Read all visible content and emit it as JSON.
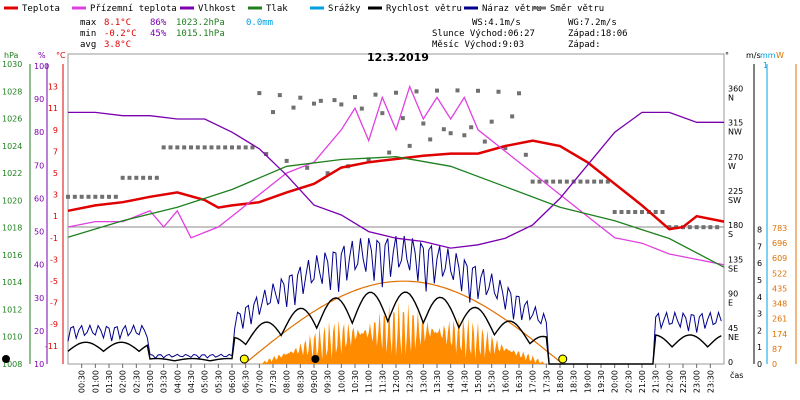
{
  "legend": [
    {
      "label": "Teplota",
      "color": "#e00000"
    },
    {
      "label": "Přízemní teplota",
      "color": "#e040e0"
    },
    {
      "label": "Vlhkost",
      "color": "#7a00b0"
    },
    {
      "label": "Tlak",
      "color": "#208020"
    },
    {
      "label": "Srážky",
      "color": "#00a0e0"
    },
    {
      "label": "Rychlost větru",
      "color": "#000000"
    },
    {
      "label": "Náraz větru",
      "color": "#00008b"
    },
    {
      "label": "Směr větru",
      "color": "#707070"
    }
  ],
  "stats": {
    "rows": [
      {
        "label": "max",
        "temp": "8.1°C",
        "hum": "86%",
        "press": "1023.2hPa",
        "rain": "0.0mm"
      },
      {
        "label": "min",
        "temp": "-0.2°C",
        "hum": "45%",
        "press": "1015.1hPa",
        "rain": ""
      },
      {
        "label": "avg",
        "temp": "3.8°C",
        "hum": "",
        "press": "",
        "rain": ""
      }
    ],
    "ws": "WS:4.1m/s",
    "wg": "WG:7.2m/s",
    "slunce": "Slunce Východ:06:27",
    "slunce_zapad": "Západ:18:06",
    "mesic": "Měsíc  Východ:9:03",
    "mesic_zapad": "Západ:"
  },
  "chart_data": {
    "type": "line",
    "title": "12.3.2019",
    "xlabel": "čas",
    "x_ticks": [
      "00:30",
      "01:00",
      "01:30",
      "02:00",
      "02:30",
      "03:00",
      "03:30",
      "04:00",
      "04:30",
      "05:00",
      "05:30",
      "06:00",
      "06:30",
      "07:00",
      "07:30",
      "08:00",
      "08:30",
      "09:00",
      "09:30",
      "10:00",
      "10:30",
      "11:00",
      "11:30",
      "12:00",
      "12:30",
      "13:00",
      "13:30",
      "14:00",
      "14:30",
      "15:00",
      "15:30",
      "16:00",
      "16:30",
      "17:00",
      "17:30",
      "18:00",
      "18:30",
      "19:00",
      "19:30",
      "20:00",
      "20:30",
      "21:00",
      "21:30",
      "22:00",
      "22:30",
      "23:00",
      "23:30"
    ],
    "axes": {
      "hPa": {
        "unit": "hPa",
        "ticks": [
          1008,
          1010,
          1012,
          1014,
          1016,
          1018,
          1020,
          1022,
          1024,
          1026,
          1028,
          1030
        ],
        "color": "#208020"
      },
      "pct": {
        "unit": "%",
        "ticks": [
          10,
          20,
          30,
          40,
          50,
          60,
          70,
          80,
          90,
          100
        ],
        "color": "#7a00b0"
      },
      "temp": {
        "unit": "°C",
        "ticks": [
          -11,
          -9,
          -7,
          -5,
          -3,
          -1,
          1,
          3,
          5,
          7,
          9,
          11,
          13
        ],
        "color": "#e00000"
      },
      "dir": {
        "unit": "°",
        "ticks": [
          "0",
          "45 NE",
          "90 E",
          "135 SE",
          "180 S",
          "225 SW",
          "270 W",
          "315 NW",
          "360 N"
        ],
        "color": "#000000"
      },
      "ms": {
        "unit": "m/s",
        "ticks": [
          0,
          1,
          2,
          3,
          4,
          5,
          6,
          7,
          8
        ],
        "color": "#000000"
      },
      "mm": {
        "unit": "mm",
        "ticks": [
          0,
          1
        ],
        "color": "#00a0e0"
      },
      "W": {
        "unit": "W",
        "ticks": [
          0,
          87,
          174,
          261,
          348,
          435,
          522,
          609,
          696,
          783
        ],
        "color": "#e07000"
      }
    },
    "sunrise_hour": 6.45,
    "sunset_hour": 18.1,
    "series": [
      {
        "name": "Teplota",
        "axis": "temp",
        "color": "#e00000",
        "x": [
          0,
          1,
          2,
          3,
          4,
          5,
          5.5,
          6,
          7,
          8,
          9,
          10,
          11,
          12,
          13,
          14,
          15,
          16,
          17,
          18,
          19,
          20,
          21,
          22,
          22.5,
          23,
          24
        ],
        "y": [
          1.5,
          2.0,
          2.3,
          2.8,
          3.2,
          2.5,
          1.8,
          2.0,
          2.3,
          3.2,
          4.0,
          5.5,
          6.0,
          6.3,
          6.6,
          6.8,
          6.8,
          7.5,
          8.0,
          7.5,
          6.0,
          4.0,
          2.0,
          -0.2,
          0.0,
          1.0,
          0.5
        ]
      },
      {
        "name": "Přízemní teplota",
        "axis": "temp",
        "color": "#e040e0",
        "x": [
          0,
          1,
          2,
          3,
          3.5,
          4,
          4.5,
          5,
          5.5,
          6,
          6.5,
          7,
          7.5,
          8,
          9,
          10,
          10.5,
          11,
          11.5,
          12,
          12.5,
          13,
          13.5,
          14,
          14.5,
          15,
          16,
          17,
          18,
          19,
          20,
          21,
          22,
          23,
          24
        ],
        "y": [
          0.0,
          0.5,
          0.5,
          1.5,
          0.0,
          1.5,
          -1.0,
          -0.5,
          0.0,
          1.0,
          2.0,
          3.0,
          4.0,
          5.0,
          6.0,
          9.0,
          11.0,
          8.0,
          12.0,
          9.0,
          13.0,
          10.0,
          12.0,
          10.0,
          12.0,
          9.0,
          7.0,
          5.0,
          3.0,
          1.0,
          -1.0,
          -1.5,
          -2.5,
          -3.0,
          -3.5
        ]
      },
      {
        "name": "Vlhkost",
        "axis": "pct",
        "color": "#7a00b0",
        "x": [
          0,
          1,
          2,
          3,
          4,
          5,
          6,
          7,
          8,
          9,
          10,
          11,
          12,
          13,
          14,
          15,
          16,
          17,
          18,
          19,
          20,
          21,
          22,
          23,
          24
        ],
        "y": [
          86,
          86,
          85,
          85,
          84,
          84,
          80,
          75,
          67,
          58,
          55,
          50,
          48,
          47,
          45,
          46,
          48,
          52,
          60,
          70,
          80,
          86,
          86,
          83,
          83
        ]
      },
      {
        "name": "Tlak",
        "axis": "hPa",
        "color": "#208020",
        "x": [
          0,
          2,
          4,
          6,
          8,
          10,
          12,
          14,
          16,
          18,
          20,
          22,
          24
        ],
        "y": [
          1017.3,
          1018.5,
          1019.5,
          1020.8,
          1022.5,
          1023.0,
          1023.2,
          1022.5,
          1021.0,
          1019.5,
          1018.5,
          1017.2,
          1015.1
        ]
      }
    ]
  }
}
